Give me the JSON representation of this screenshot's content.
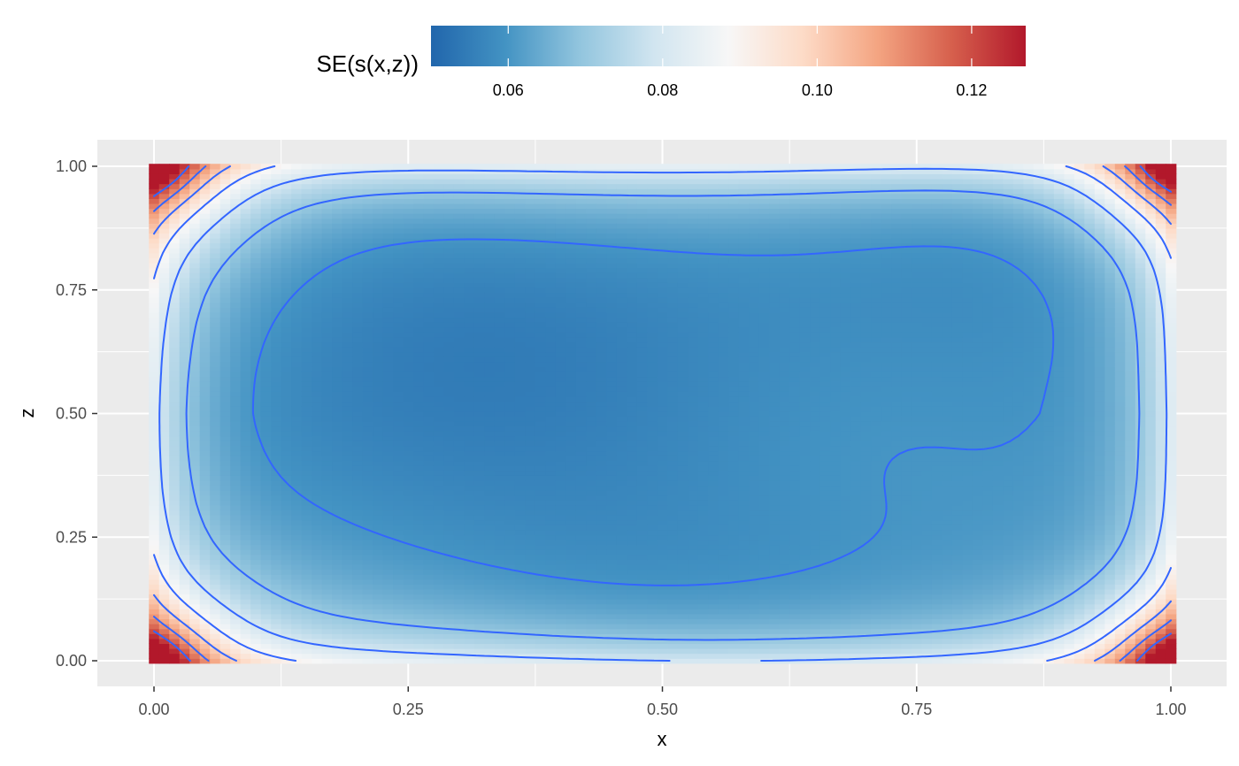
{
  "chart_data": {
    "type": "heatmap",
    "xlabel": "x",
    "ylabel": "z",
    "xlim": [
      0,
      1
    ],
    "ylim": [
      0,
      1
    ],
    "x_ticks": [
      "0.00",
      "0.25",
      "0.50",
      "0.75",
      "1.00"
    ],
    "y_ticks": [
      "0.00",
      "0.25",
      "0.50",
      "0.75",
      "1.00"
    ],
    "x_tick_values": [
      0,
      0.25,
      0.5,
      0.75,
      1
    ],
    "y_tick_values": [
      0,
      0.25,
      0.5,
      0.75,
      1
    ],
    "grid": true,
    "legend": {
      "title": "SE(s(x,z))",
      "position": "top",
      "range": [
        0.05,
        0.127
      ],
      "tick_values": [
        0.06,
        0.08,
        0.1,
        0.12
      ],
      "tick_labels": [
        "0.06",
        "0.08",
        "0.10",
        "0.12"
      ],
      "palette": [
        "#2166ac",
        "#4393c3",
        "#92c5de",
        "#d1e5f0",
        "#f7f7f7",
        "#fddbc7",
        "#f4a582",
        "#d6604d",
        "#b2182b"
      ]
    },
    "fill_model": {
      "center_value": 0.057,
      "edge_value": 0.082,
      "corner_value": 0.127,
      "grid_resolution": 101
    },
    "contour_levels": [
      0.06,
      0.07,
      0.08,
      0.09,
      0.1,
      0.11,
      0.12
    ],
    "contour_color": "#3366ff",
    "panel_background": "#ebebeb",
    "grid_color": "#ffffff"
  }
}
